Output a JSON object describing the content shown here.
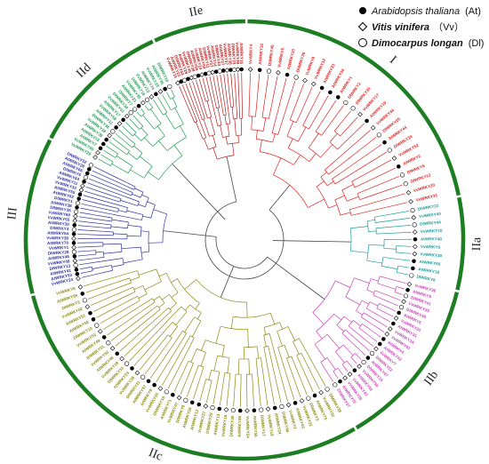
{
  "legend": [
    {
      "marker": "filled-circle",
      "species": "Arabidopsis thaliana",
      "code": "(At)"
    },
    {
      "marker": "diamond",
      "species": "Vitis vinifera",
      "code": "（Vv）"
    },
    {
      "marker": "open-circle",
      "species": "Dimocarpus longan",
      "code": "(Dl)"
    }
  ],
  "groups": [
    {
      "label": "I",
      "color": "#e0201f"
    },
    {
      "label": "IIa",
      "color": "#1b9a9a"
    },
    {
      "label": "IIb",
      "color": "#c93fb8"
    },
    {
      "label": "IIc",
      "color": "#8a8a10"
    },
    {
      "label": "III",
      "color": "#2f2f9e"
    },
    {
      "label": "IId",
      "color": "#1f9b53"
    },
    {
      "label": "IIe",
      "color": "#b82020"
    }
  ],
  "colors": {
    "arc": "#1d7d22",
    "backbone": "#444444"
  },
  "leaf_names": {
    "I": [
      "VvWRKY4",
      "AtWRKY32",
      "DlWRKY45",
      "VvWRKY5",
      "AtWRKY20",
      "DlWRKY26",
      "VvWRKY8",
      "VvWRKY12",
      "AtWRKY33",
      "AtWRKY34",
      "AtWRKY1",
      "DlWRKY2",
      "DlWRKY20",
      "VvWRKY17",
      "AtWRKY19",
      "VvWRKY44",
      "DlWRKY25",
      "AtWRKY44",
      "DlWRKY24",
      "VvWRKY52",
      "AtWRKY2",
      "DlWRKY6",
      "DlWRKY12",
      "VvWRKY20",
      "VvWRKY31"
    ],
    "IIa": [
      "DlWRKY22",
      "VvWRKY40",
      "DlWRKY44",
      "VvWRKY10",
      "AtWRKY40",
      "VvWRKY9",
      "VvWRKY30",
      "AtWRKY60",
      "AtWRKY18",
      "DlWRKY8"
    ],
    "IIb": [
      "VvWRKY36",
      "AtWRKY9",
      "DlWRKY41",
      "VvWRKY35",
      "DlWRKY40",
      "AtWRKY6",
      "VvWRKY25",
      "AtWRKY31",
      "VvWRKY34",
      "VvWRKY61",
      "AtWRKY4",
      "AtWRKY42",
      "VvWRKY7",
      "DlWRKY22",
      "AtWRKY47",
      "DlWRKY15",
      "VvWRKY56",
      "AtWRKY61",
      "VvWRKY43",
      "VvWRKY26",
      "AtWRKY72",
      "DlWRKY37"
    ],
    "IIc": [
      "DlWRKY38",
      "VvWRKY32",
      "AtWRKY75",
      "DlWRKY5",
      "VvWRKY21",
      "AtWRKY43",
      "VvWRKY2",
      "DlWRKY46",
      "AtWRKY24",
      "VvWRKY19",
      "DlWRKY17",
      "AtWRKY56",
      "VvWRKY54",
      "AtWRKY45",
      "DlWRKY30",
      "VvWRKY16",
      "AtWRKY13",
      "DlWRKY29",
      "VvWRKY27",
      "AtWRKY12",
      "AtWRKY28",
      "DlWRKY9",
      "VvWRKY47",
      "AtWRKY71",
      "DlWRKY18",
      "VvWRKY23",
      "AtWRKY8",
      "AtWRKY57",
      "DlWRKY21",
      "VvWRKY28",
      "AtWRKY23",
      "DlWRKY33",
      "VvWRKY39",
      "AtWRKY48",
      "VvWRKY53",
      "DlWRKY31",
      "AtWRKY49",
      "VvWRKY51",
      "DlWRKY10",
      "AtWRKY50",
      "AtWRKY51",
      "VvWRKY42",
      "DlWRKY3",
      "AtWRKY59",
      "VvWRKY6"
    ],
    "III": [
      "VvWRKY24",
      "AtWRKY53",
      "AtWRKY41",
      "DlWRKY13",
      "VvWRKY48",
      "AtWRKY46",
      "DlWRKY28",
      "VvWRKY1",
      "AtWRKY70",
      "VvWRKY38",
      "AtWRKY54",
      "DlWRKY4",
      "AtWRKY30",
      "VvWRKY55",
      "VvWRKY60",
      "DlWRKY35",
      "AtWRKY38",
      "DlWRKY1",
      "AtWRKY62",
      "AtWRKY55",
      "VvWRKY33",
      "VvWRKY11",
      "AtWRKY64",
      "DlWRKY6",
      "AtWRKY66",
      "AtWRKY26",
      "DlWRKY32"
    ],
    "IId": [
      "VvWRKY29",
      "VvWRKY50",
      "AtWRKY7",
      "AtWRKY15",
      "AtWRKY39",
      "VvWRKY18",
      "DlWRKY36",
      "AtWRKY11",
      "VvWRKY58",
      "AtWRKY17",
      "VvWRKY41",
      "DlWRKY34",
      "DlWRKY7",
      "AtWRKY21",
      "VvWRKY30",
      "DlWRKY16",
      "VvWRKY13",
      "AtWRKY74",
      "VvWRKY23",
      "AtWRKY35",
      "DlWRKY19"
    ],
    "IIe": [
      "VvWRKY15",
      "AtWRKY22",
      "DlWRKY42",
      "AtWRKY29",
      "VvWRKY45",
      "DlWRKY39",
      "AtWRKY65",
      "VvWRKY14",
      "AtWRKY69",
      "DlWRKY11",
      "VvWRKY57",
      "AtWRKY14",
      "DlWRKY43",
      "AtWRKY27",
      "VvWRKY37",
      "AtWRKY36",
      "DlWRKY23",
      "VvWRKY49",
      "AtWRKY16"
    ]
  }
}
